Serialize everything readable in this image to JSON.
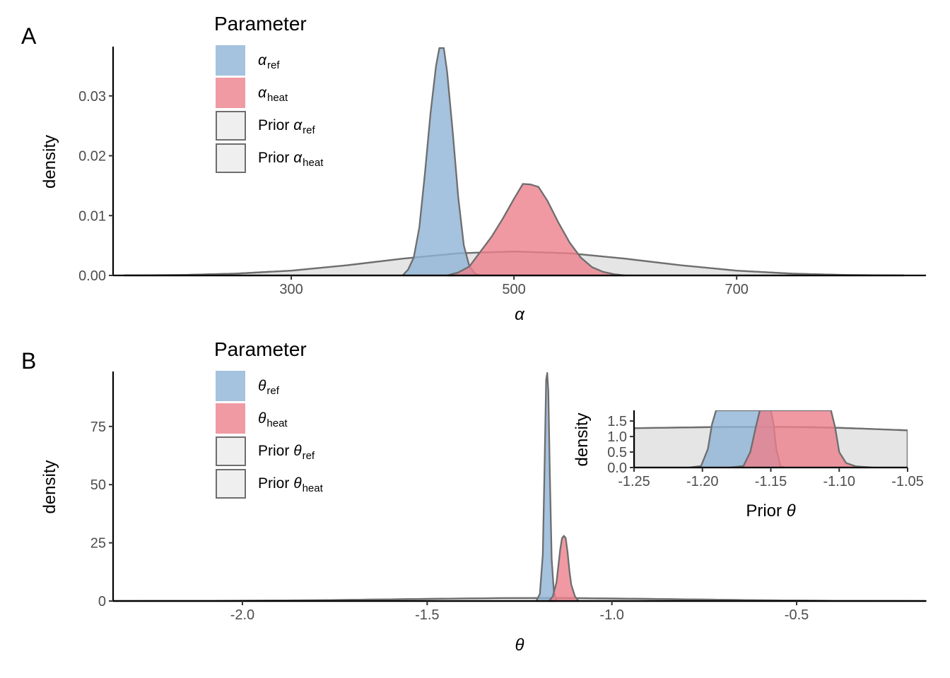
{
  "chart_data": [
    {
      "panel": "A",
      "type": "area",
      "xlabel": "α",
      "ylabel": "density",
      "xlim": [
        140,
        870
      ],
      "ylim": [
        0,
        0.038
      ],
      "xticks": [
        300,
        500,
        700
      ],
      "yticks": [
        0.0,
        0.01,
        0.02,
        0.03
      ],
      "ytick_labels": [
        "0.00",
        "0.01",
        "0.02",
        "0.03"
      ],
      "xtick_labels": [
        "300",
        "500",
        "700"
      ],
      "legend": {
        "title": "Parameter",
        "placement": "top-left",
        "entries": [
          {
            "prefix": "",
            "sym": "α",
            "sub": "ref"
          },
          {
            "prefix": "",
            "sym": "α",
            "sub": "heat"
          },
          {
            "prefix": "Prior ",
            "sym": "α",
            "sub": "ref"
          },
          {
            "prefix": "Prior ",
            "sym": "α",
            "sub": "heat"
          }
        ]
      },
      "series": [
        {
          "label_index": 2,
          "kind": "prior",
          "color": "#d9d9d9",
          "x": [
            150,
            200,
            250,
            300,
            350,
            400,
            450,
            500,
            550,
            600,
            650,
            700,
            750,
            800,
            850
          ],
          "y": [
            1e-05,
            7e-05,
            0.0003,
            0.0008,
            0.0017,
            0.0028,
            0.0037,
            0.004,
            0.0037,
            0.0028,
            0.0017,
            0.0008,
            0.0003,
            7e-05,
            1e-05
          ]
        },
        {
          "label_index": 3,
          "kind": "prior",
          "color": "#d9d9d9",
          "x": [
            150,
            200,
            250,
            300,
            350,
            400,
            450,
            500,
            550,
            600,
            650,
            700,
            750,
            800,
            850
          ],
          "y": [
            1e-05,
            7e-05,
            0.0003,
            0.0008,
            0.0017,
            0.0028,
            0.0037,
            0.004,
            0.0037,
            0.0028,
            0.0017,
            0.0008,
            0.0003,
            7e-05,
            1e-05
          ]
        },
        {
          "label_index": 0,
          "kind": "posterior",
          "color": "#8fb3d6",
          "x": [
            400,
            405,
            410,
            415,
            420,
            425,
            430,
            433,
            437,
            440,
            445,
            450,
            455,
            460,
            465,
            470
          ],
          "y": [
            0,
            0.001,
            0.003,
            0.008,
            0.017,
            0.027,
            0.035,
            0.038,
            0.038,
            0.034,
            0.024,
            0.013,
            0.005,
            0.0015,
            0.0003,
            0
          ]
        },
        {
          "label_index": 1,
          "kind": "posterior",
          "color": "#ec7f8c",
          "x": [
            440,
            450,
            460,
            470,
            480,
            490,
            500,
            508,
            515,
            522,
            530,
            540,
            550,
            560,
            570,
            580,
            590,
            600
          ],
          "y": [
            0,
            0.0005,
            0.0015,
            0.004,
            0.0065,
            0.0095,
            0.0128,
            0.0153,
            0.0152,
            0.0148,
            0.0125,
            0.0088,
            0.0055,
            0.003,
            0.0014,
            0.0006,
            0.0002,
            0
          ]
        }
      ]
    },
    {
      "panel": "B",
      "type": "area",
      "xlabel": "θ",
      "ylabel": "density",
      "xlim": [
        -2.35,
        -0.15
      ],
      "ylim": [
        0,
        98
      ],
      "xticks": [
        -2.0,
        -1.5,
        -1.0,
        -0.5
      ],
      "xtick_labels": [
        "-2.0",
        "-1.5",
        "-1.0",
        "-0.5"
      ],
      "yticks": [
        0,
        25,
        50,
        75
      ],
      "ytick_labels": [
        "0",
        "25",
        "50",
        "75"
      ],
      "legend": {
        "title": "Parameter",
        "placement": "top-left",
        "entries": [
          {
            "prefix": "",
            "sym": "θ",
            "sub": "ref"
          },
          {
            "prefix": "",
            "sym": "θ",
            "sub": "heat"
          },
          {
            "prefix": "Prior ",
            "sym": "θ",
            "sub": "ref"
          },
          {
            "prefix": "Prior ",
            "sym": "θ",
            "sub": "heat"
          }
        ]
      },
      "series": [
        {
          "label_index": 2,
          "kind": "prior",
          "color": "#d9d9d9",
          "x": [
            -2.35,
            -2.0,
            -1.8,
            -1.6,
            -1.45,
            -1.3,
            -1.2,
            -1.1,
            -0.95,
            -0.8,
            -0.6,
            -0.4,
            -0.15
          ],
          "y": [
            0.02,
            0.15,
            0.35,
            0.7,
            1.0,
            1.25,
            1.3,
            1.25,
            1.0,
            0.7,
            0.35,
            0.12,
            0.02
          ]
        },
        {
          "label_index": 3,
          "kind": "prior",
          "color": "#d9d9d9",
          "x": [
            -2.35,
            -2.0,
            -1.8,
            -1.6,
            -1.45,
            -1.3,
            -1.2,
            -1.1,
            -0.95,
            -0.8,
            -0.6,
            -0.4,
            -0.15
          ],
          "y": [
            0.02,
            0.15,
            0.35,
            0.7,
            1.0,
            1.25,
            1.3,
            1.25,
            1.0,
            0.7,
            0.35,
            0.12,
            0.02
          ]
        },
        {
          "label_index": 0,
          "kind": "posterior",
          "color": "#8fb3d6",
          "x": [
            -1.205,
            -1.195,
            -1.187,
            -1.182,
            -1.178,
            -1.175,
            -1.172,
            -1.168,
            -1.163,
            -1.157,
            -1.15
          ],
          "y": [
            0,
            3,
            20,
            60,
            95,
            98,
            90,
            55,
            18,
            4,
            0
          ]
        },
        {
          "label_index": 1,
          "kind": "posterior",
          "color": "#ec7f8c",
          "x": [
            -1.17,
            -1.16,
            -1.15,
            -1.145,
            -1.14,
            -1.135,
            -1.13,
            -1.125,
            -1.12,
            -1.115,
            -1.11,
            -1.1,
            -1.09
          ],
          "y": [
            0,
            2,
            8,
            15,
            22,
            27,
            28,
            27,
            21,
            13,
            7,
            2,
            0
          ]
        }
      ],
      "inset": {
        "xlabel": "Prior θ",
        "ylabel": "density",
        "xlim": [
          -1.25,
          -1.05
        ],
        "ylim": [
          0,
          1.8
        ],
        "xticks": [
          -1.25,
          -1.2,
          -1.15,
          -1.1,
          -1.05
        ],
        "xtick_labels": [
          "-1.25",
          "-1.20",
          "-1.15",
          "-1.10",
          "-1.05"
        ],
        "yticks": [
          0.0,
          0.5,
          1.0,
          1.5
        ],
        "ytick_labels": [
          "0.0",
          "0.5",
          "1.0",
          "1.5"
        ],
        "series": [
          {
            "kind": "prior",
            "color": "#d9d9d9",
            "x": [
              -1.25,
              -1.2,
              -1.18,
              -1.16,
              -1.14,
              -1.12,
              -1.1,
              -1.08,
              -1.05
            ],
            "y": [
              1.27,
              1.3,
              1.31,
              1.31,
              1.31,
              1.3,
              1.28,
              1.25,
              1.2
            ]
          },
          {
            "kind": "prior",
            "color": "#d9d9d9",
            "x": [
              -1.25,
              -1.2,
              -1.18,
              -1.16,
              -1.14,
              -1.12,
              -1.1,
              -1.08,
              -1.05
            ],
            "y": [
              1.27,
              1.3,
              1.31,
              1.31,
              1.31,
              1.3,
              1.28,
              1.25,
              1.2
            ]
          },
          {
            "kind": "posterior",
            "color": "#8fb3d6",
            "x": [
              -1.21,
              -1.201,
              -1.196,
              -1.193,
              -1.19,
              -1.15,
              -1.148,
              -1.146,
              -1.143,
              -1.14
            ],
            "y": [
              0,
              0.05,
              0.6,
              1.4,
              3.0,
              3.0,
              1.4,
              0.6,
              0.05,
              0
            ]
          },
          {
            "kind": "posterior",
            "color": "#ec7f8c",
            "x": [
              -1.18,
              -1.17,
              -1.165,
              -1.161,
              -1.158,
              -1.106,
              -1.103,
              -1.1,
              -1.095,
              -1.088,
              -1.075
            ],
            "y": [
              0,
              0.05,
              0.5,
              1.3,
              3.0,
              3.0,
              1.3,
              0.5,
              0.15,
              0.04,
              0
            ]
          }
        ]
      }
    }
  ]
}
